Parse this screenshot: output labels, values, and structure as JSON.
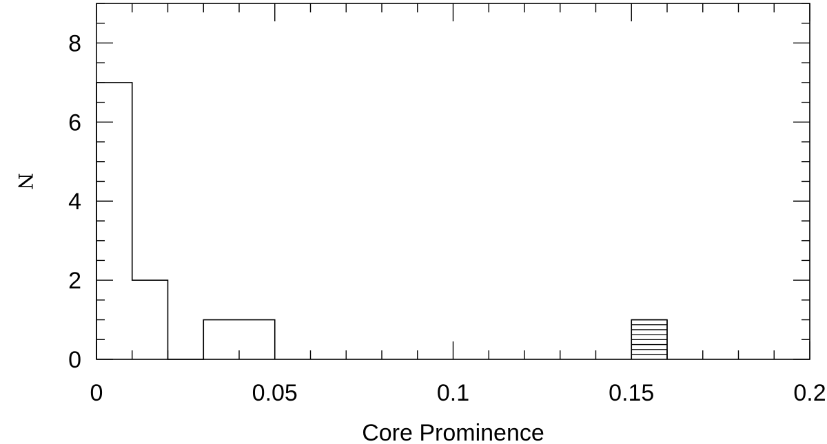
{
  "chart_data": {
    "type": "bar",
    "title": "",
    "xlabel": "Core Prominence",
    "ylabel": "N",
    "xlim": [
      0,
      0.2
    ],
    "ylim": [
      0,
      9
    ],
    "bin_width": 0.01,
    "x_ticks": [
      {
        "value": 0,
        "label": "0"
      },
      {
        "value": 0.05,
        "label": "0.05"
      },
      {
        "value": 0.1,
        "label": "0.1"
      },
      {
        "value": 0.15,
        "label": "0.15"
      },
      {
        "value": 0.2,
        "label": "0.2"
      }
    ],
    "x_minor_step": 0.01,
    "y_ticks": [
      {
        "value": 0,
        "label": "0"
      },
      {
        "value": 2,
        "label": "2"
      },
      {
        "value": 4,
        "label": "4"
      },
      {
        "value": 6,
        "label": "6"
      },
      {
        "value": 8,
        "label": "8"
      }
    ],
    "y_minor_step": 0.5,
    "grid": false,
    "series": [
      {
        "style": "outline",
        "color": "#000000",
        "bins": [
          {
            "x0": 0.0,
            "x1": 0.01,
            "value": 7
          },
          {
            "x0": 0.01,
            "x1": 0.02,
            "value": 2
          },
          {
            "x0": 0.02,
            "x1": 0.03,
            "value": 0
          },
          {
            "x0": 0.03,
            "x1": 0.04,
            "value": 1
          },
          {
            "x0": 0.04,
            "x1": 0.05,
            "value": 1
          },
          {
            "x0": 0.15,
            "x1": 0.16,
            "value": 1
          }
        ]
      },
      {
        "style": "horizontal-hatch",
        "color": "#000000",
        "bins": [
          {
            "x0": 0.15,
            "x1": 0.16,
            "value": 1
          }
        ]
      }
    ]
  }
}
